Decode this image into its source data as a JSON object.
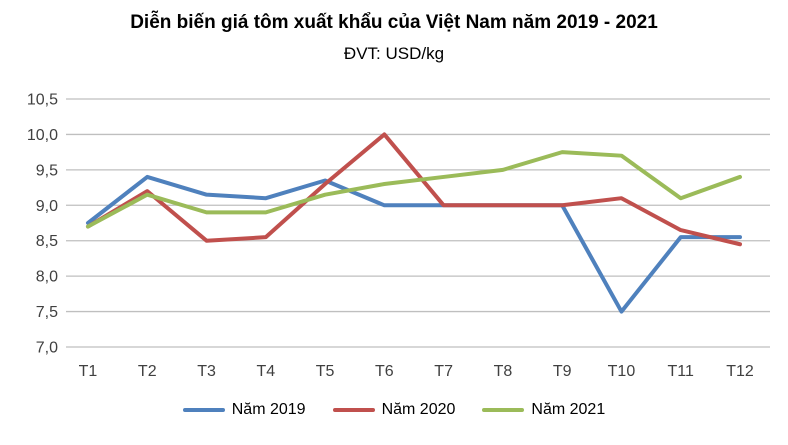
{
  "header": {
    "title": "Diễn biến giá tôm xuất khẩu của Việt Nam năm 2019 - 2021",
    "subtitle": "ĐVT: USD/kg"
  },
  "chart_data": {
    "type": "line",
    "categories": [
      "T1",
      "T2",
      "T3",
      "T4",
      "T5",
      "T6",
      "T7",
      "T8",
      "T9",
      "T10",
      "T11",
      "T12"
    ],
    "series": [
      {
        "name": "Năm 2019",
        "color": "#4F81BD",
        "values": [
          8.75,
          9.4,
          9.15,
          9.1,
          9.35,
          9.0,
          9.0,
          9.0,
          9.0,
          7.5,
          8.55,
          8.55
        ]
      },
      {
        "name": "Năm 2020",
        "color": "#C0504D",
        "values": [
          8.7,
          9.2,
          8.5,
          8.55,
          9.3,
          10.0,
          9.0,
          9.0,
          9.0,
          9.1,
          8.65,
          8.45
        ]
      },
      {
        "name": "Năm 2021",
        "color": "#9BBB59",
        "values": [
          8.7,
          9.15,
          8.9,
          8.9,
          9.15,
          9.3,
          9.4,
          9.5,
          9.75,
          9.7,
          9.1,
          9.4
        ]
      }
    ],
    "title": "Diễn biến giá tôm xuất khẩu của Việt Nam năm 2019 - 2021",
    "subtitle": "ĐVT: USD/kg",
    "xlabel": "",
    "ylabel": "",
    "unit": "USD/kg",
    "ylim": [
      7.0,
      10.5
    ],
    "ytick_step": 0.5,
    "ytick_labels": [
      "7,0",
      "7,5",
      "8,0",
      "8,5",
      "9,0",
      "9,5",
      "10,0",
      "10,5"
    ],
    "decimal_separator": ",",
    "grid": true,
    "legend_position": "bottom"
  },
  "colors": {
    "gridline": "#BFBFBF",
    "axis_text": "#404040",
    "title_text": "#000000"
  }
}
